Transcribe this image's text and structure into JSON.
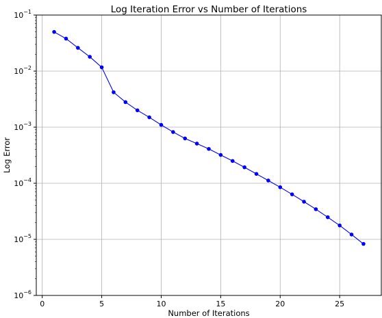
{
  "chart_data": {
    "type": "line",
    "title": "Log Iteration Error vs Number of Iterations",
    "xlabel": "Number of Iterations",
    "ylabel": "Log Error",
    "yscale": "log",
    "xlim": [
      -0.5,
      28.5
    ],
    "ylim": [
      1e-06,
      0.1
    ],
    "grid": true,
    "x_ticks": [
      {
        "value": 0,
        "label": "0"
      },
      {
        "value": 5,
        "label": "5"
      },
      {
        "value": 10,
        "label": "10"
      },
      {
        "value": 15,
        "label": "15"
      },
      {
        "value": 20,
        "label": "20"
      },
      {
        "value": 25,
        "label": "25"
      }
    ],
    "y_ticks": [
      {
        "value": 1e-06,
        "base": "10",
        "exp": "−6"
      },
      {
        "value": 1e-05,
        "base": "10",
        "exp": "−5"
      },
      {
        "value": 0.0001,
        "base": "10",
        "exp": "−4"
      },
      {
        "value": 0.001,
        "base": "10",
        "exp": "−3"
      },
      {
        "value": 0.01,
        "base": "10",
        "exp": "−2"
      },
      {
        "value": 0.1,
        "base": "10",
        "exp": "−1"
      }
    ],
    "series": [
      {
        "color": "#0000ff",
        "marker": "circle",
        "x": [
          1,
          2,
          3,
          4,
          5,
          6,
          7,
          8,
          9,
          10,
          11,
          12,
          13,
          14,
          15,
          16,
          17,
          18,
          19,
          20,
          21,
          22,
          23,
          24,
          25,
          26,
          27
        ],
        "y": [
          0.05,
          0.038,
          0.026,
          0.018,
          0.0117,
          0.0042,
          0.0028,
          0.002,
          0.0015,
          0.0011,
          0.00082,
          0.00063,
          0.00051,
          0.00041,
          0.00032,
          0.00025,
          0.000193,
          0.000147,
          0.000112,
          8.5e-05,
          6.35e-05,
          4.7e-05,
          3.45e-05,
          2.48e-05,
          1.77e-05,
          1.22e-05,
          8.3e-06
        ]
      }
    ]
  }
}
